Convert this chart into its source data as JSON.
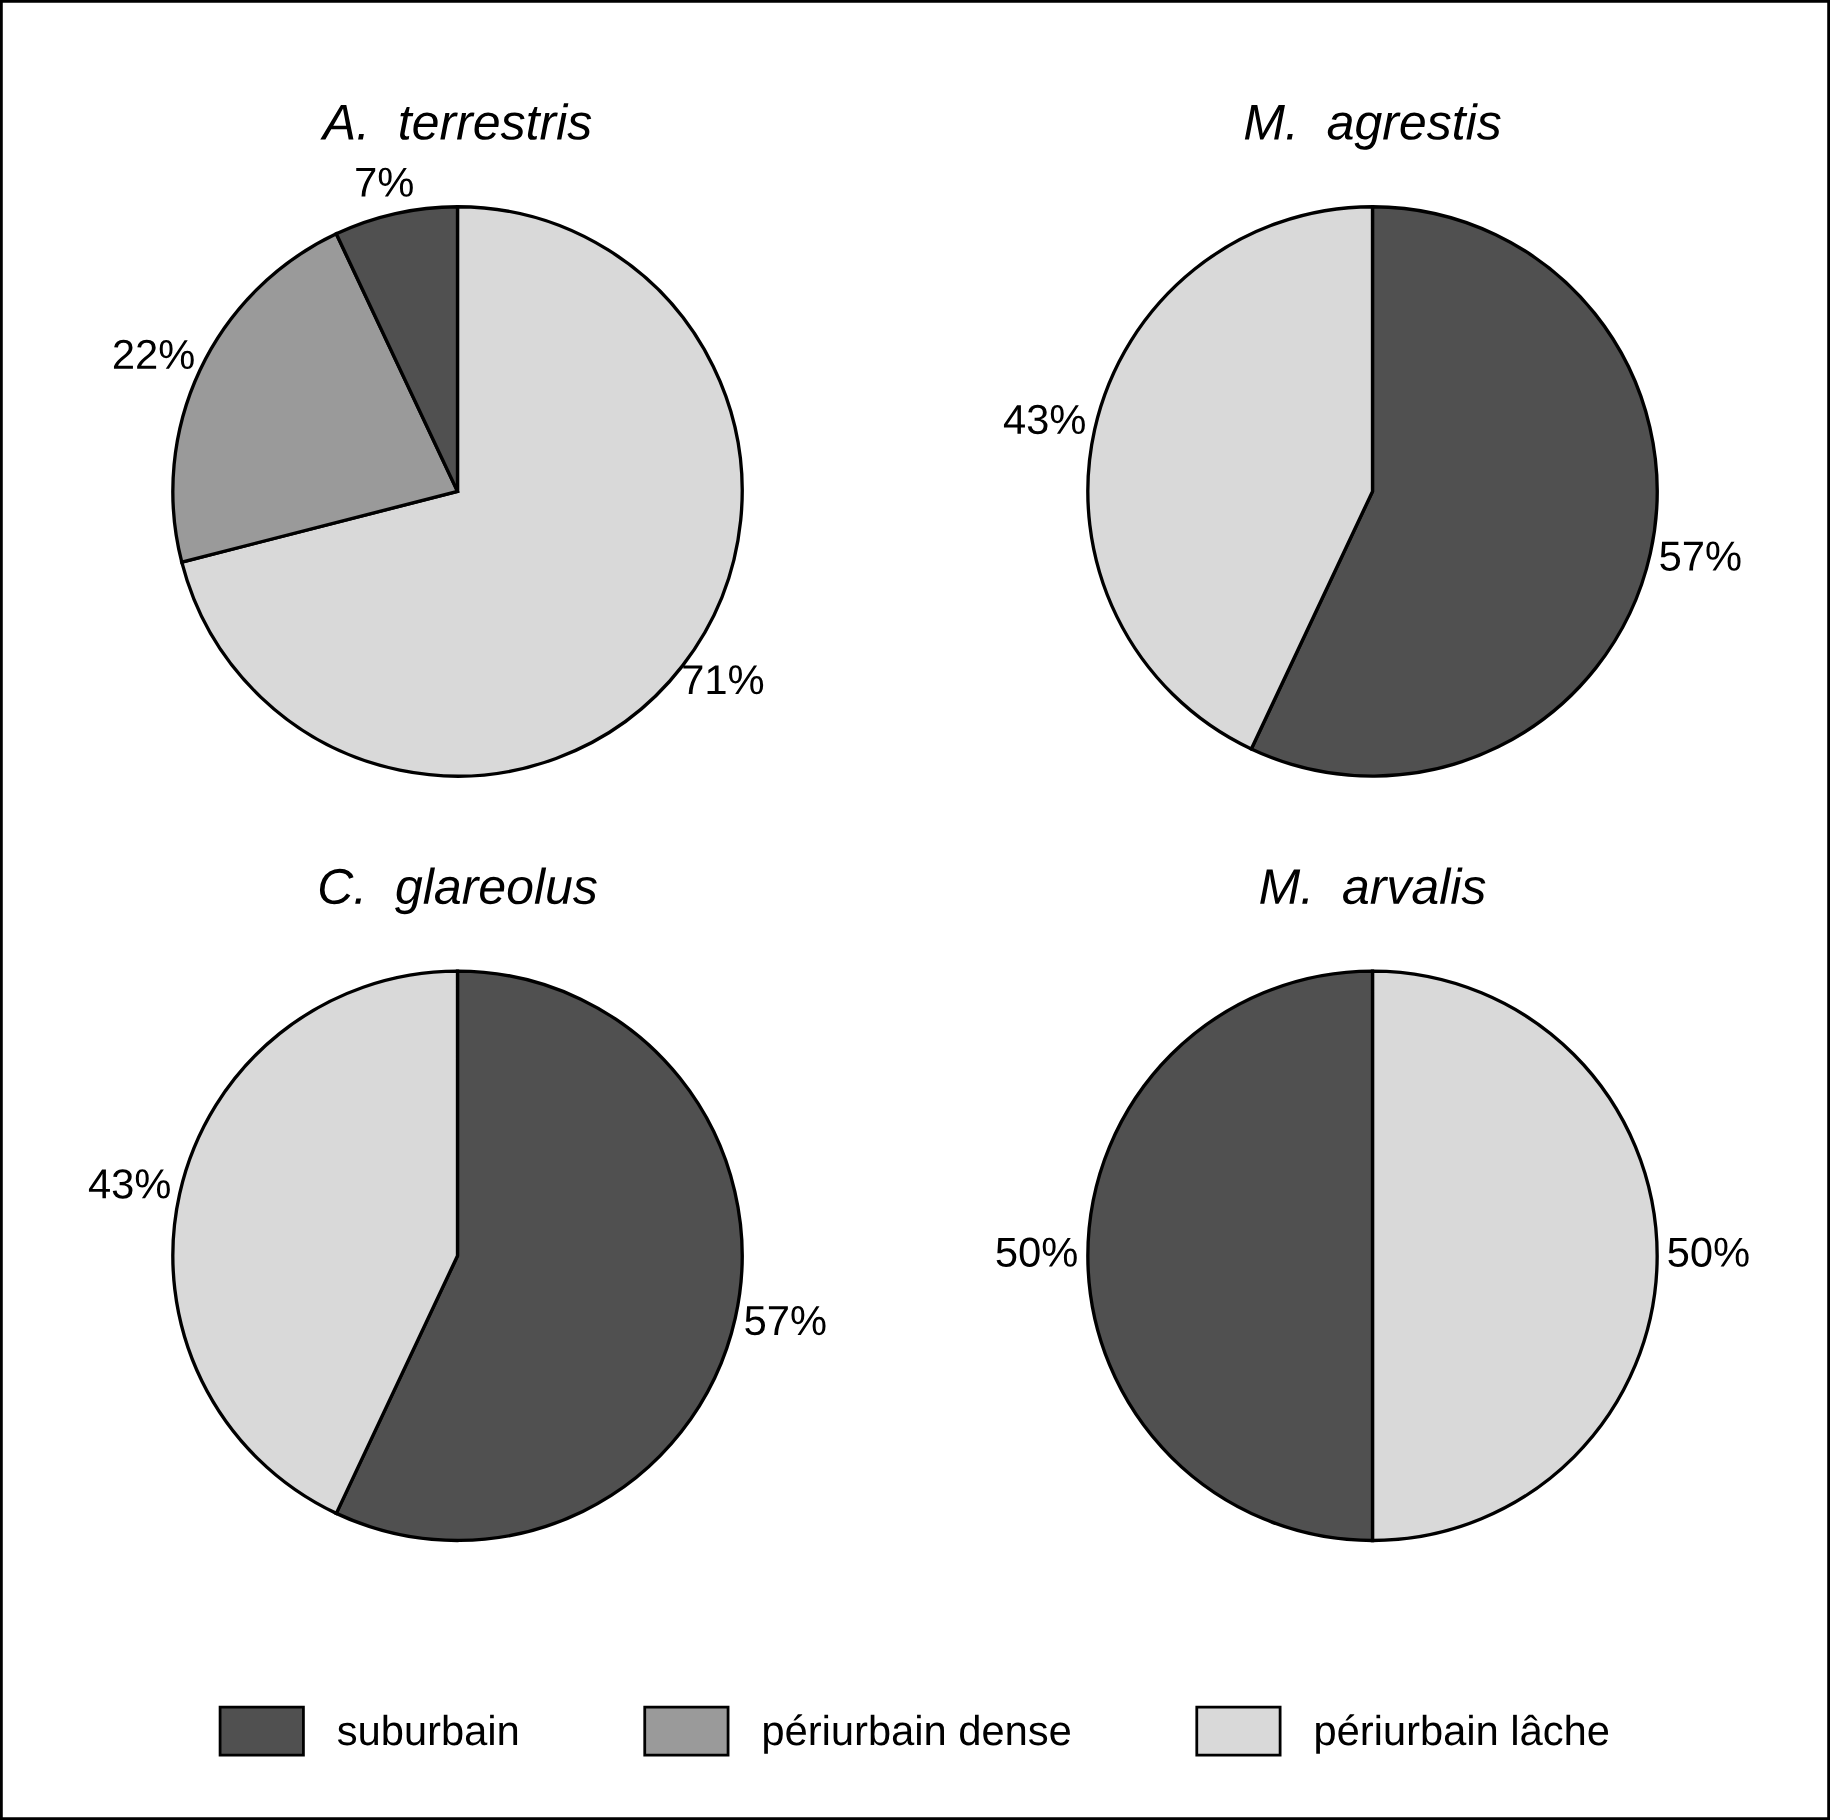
{
  "chart_data": [
    {
      "type": "pie",
      "title": "A.  terrestris",
      "categories": [
        "périurbain lâche",
        "périurbain dense",
        "suburbain"
      ],
      "values": [
        71,
        22,
        7
      ],
      "value_labels": [
        "71%",
        "22%",
        "7%"
      ],
      "colors": [
        "#d9d9d9",
        "#9a9a9a",
        "#505050"
      ],
      "legend": "bottom"
    },
    {
      "type": "pie",
      "title": "M.  agrestis",
      "categories": [
        null,
        null
      ],
      "values": [
        57,
        43
      ],
      "value_labels": [
        "57%",
        "43%"
      ],
      "colors": [
        "#505050",
        "#d9d9d9"
      ]
    },
    {
      "type": "pie",
      "title": "C.  glareolus",
      "categories": [
        null,
        null
      ],
      "values": [
        57,
        43
      ],
      "value_labels": [
        "57%",
        "43%"
      ],
      "colors": [
        "#505050",
        "#d9d9d9"
      ]
    },
    {
      "type": "pie",
      "title": "M.  arvalis",
      "categories": [
        null,
        null
      ],
      "values": [
        50,
        50
      ],
      "value_labels": [
        "50%",
        "50%"
      ],
      "colors": [
        "#d9d9d9",
        "#505050"
      ]
    }
  ]
}
